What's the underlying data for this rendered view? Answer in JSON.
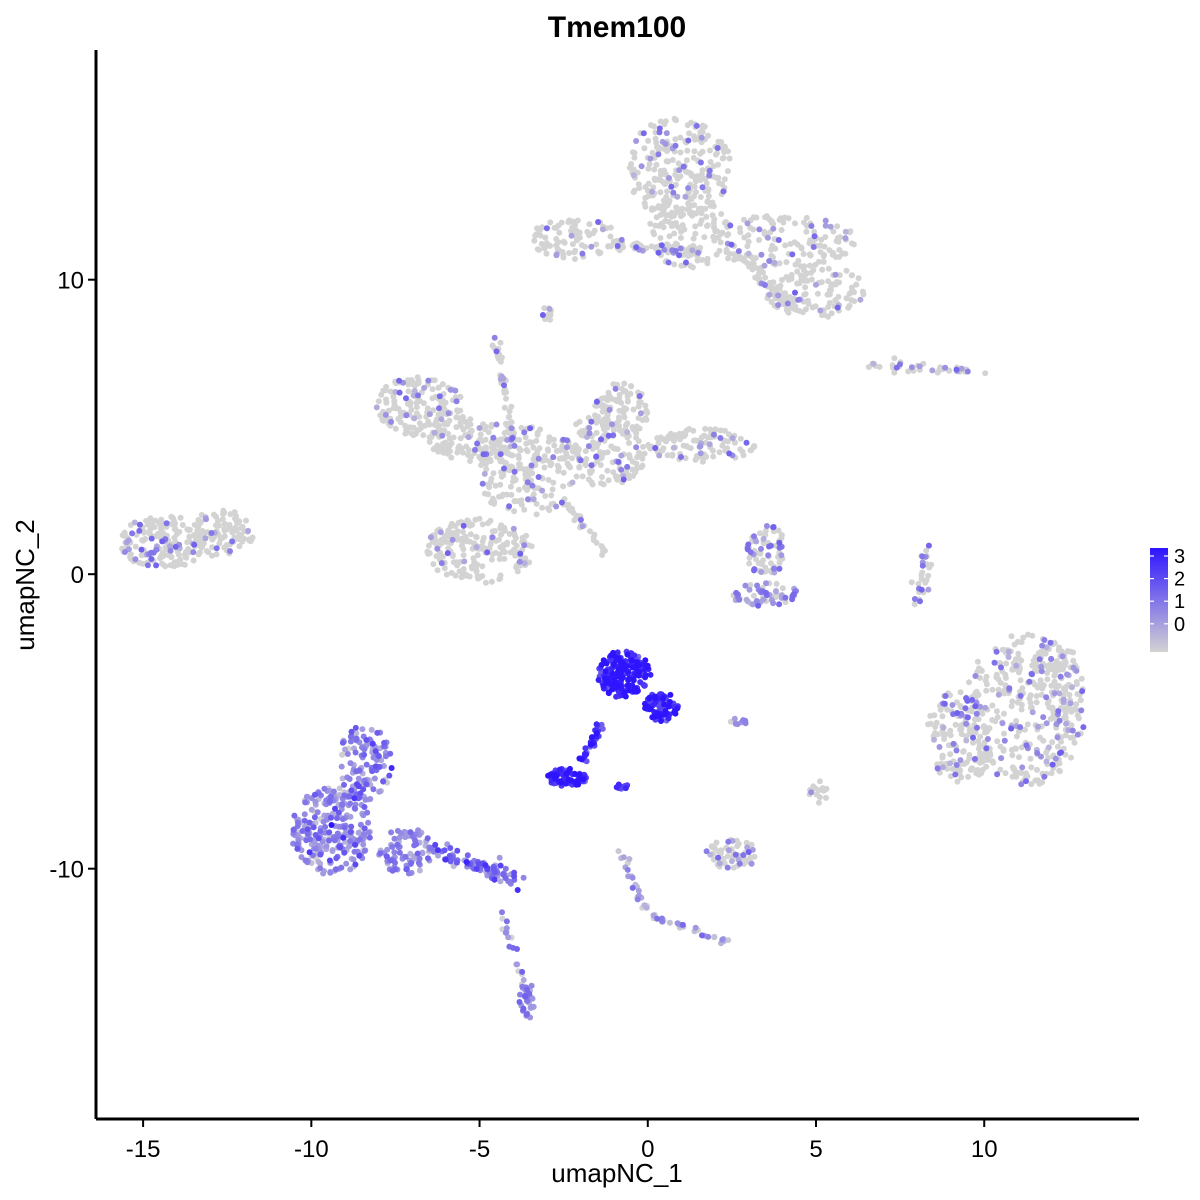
{
  "chart_data": {
    "type": "scatter",
    "title": "Tmem100",
    "xlabel": "umapNC_1",
    "ylabel": "umapNC_2",
    "xlim": [
      -16.4,
      14.6
    ],
    "ylim": [
      -18.5,
      17.8
    ],
    "x_ticks": [
      -15,
      -10,
      -5,
      0,
      5,
      10
    ],
    "y_ticks": [
      10,
      0,
      -10
    ],
    "x_tick_labels": [
      "-15",
      "-10",
      "-5",
      "0",
      "5",
      "10"
    ],
    "y_tick_labels": [
      "10",
      "0",
      "-10"
    ],
    "grid": false,
    "legend": {
      "placement": "right",
      "values": [
        3,
        2,
        1,
        0
      ],
      "labels": [
        "3",
        "2",
        "1",
        "0"
      ],
      "low_color": "#d3d3d3",
      "high_color": "#2e14ff"
    },
    "expression_range": [
      0,
      3.3
    ],
    "point_color_low": "#d3d3d3",
    "point_color_high": "#2e14ff",
    "clusters": [
      {
        "shape": "blob",
        "cx": 0.9,
        "cy": 13.8,
        "rx": 1.6,
        "ry": 1.7,
        "n": 240,
        "expr": 0.05
      },
      {
        "shape": "blob",
        "cx": 1.2,
        "cy": 11.6,
        "rx": 1.2,
        "ry": 1.2,
        "n": 90,
        "expr": 0.05
      },
      {
        "shape": "blob",
        "cx": 4.0,
        "cy": 11.3,
        "rx": 2.2,
        "ry": 0.9,
        "n": 140,
        "expr": 0.05
      },
      {
        "shape": "blob",
        "cx": 5.0,
        "cy": 9.6,
        "rx": 1.5,
        "ry": 0.9,
        "n": 120,
        "expr": 0.05
      },
      {
        "shape": "blob",
        "cx": -2.2,
        "cy": 11.4,
        "rx": 1.3,
        "ry": 0.7,
        "n": 80,
        "expr": 0.05
      },
      {
        "shape": "line",
        "x0": -1.2,
        "y0": 11.2,
        "x1": 1.5,
        "y1": 11.0,
        "n": 60,
        "w": 0.2,
        "expr": 0.05
      },
      {
        "shape": "line",
        "x0": 2.5,
        "y0": 11.0,
        "x1": 4.2,
        "y1": 9.2,
        "n": 50,
        "w": 0.3,
        "expr": 0.05
      },
      {
        "shape": "blob",
        "cx": -3.0,
        "cy": 8.8,
        "rx": 0.15,
        "ry": 0.3,
        "n": 12,
        "expr": 0.1
      },
      {
        "shape": "blob",
        "cx": -6.8,
        "cy": 5.7,
        "rx": 1.3,
        "ry": 1.0,
        "n": 160,
        "expr": 0.05
      },
      {
        "shape": "blob",
        "cx": -5.2,
        "cy": 4.6,
        "rx": 1.3,
        "ry": 0.8,
        "n": 120,
        "expr": 0.05
      },
      {
        "shape": "blob",
        "cx": -3.6,
        "cy": 3.5,
        "rx": 1.5,
        "ry": 1.5,
        "n": 200,
        "expr": 0.05
      },
      {
        "shape": "blob",
        "cx": -1.3,
        "cy": 4.2,
        "rx": 1.3,
        "ry": 1.2,
        "n": 160,
        "expr": 0.05
      },
      {
        "shape": "blob",
        "cx": -0.8,
        "cy": 5.5,
        "rx": 0.8,
        "ry": 1.0,
        "n": 90,
        "expr": 0.05
      },
      {
        "shape": "blob",
        "cx": 1.6,
        "cy": 4.4,
        "rx": 1.6,
        "ry": 0.6,
        "n": 110,
        "expr": 0.06
      },
      {
        "shape": "blob",
        "cx": -5.0,
        "cy": 0.8,
        "rx": 1.6,
        "ry": 1.1,
        "n": 200,
        "expr": 0.05
      },
      {
        "shape": "line",
        "x0": -4.5,
        "y0": 8.0,
        "x1": -4.0,
        "y1": 4.5,
        "n": 40,
        "w": 0.12,
        "expr": 0.05
      },
      {
        "shape": "line",
        "x0": -2.5,
        "y0": 2.5,
        "x1": -1.2,
        "y1": 0.7,
        "n": 30,
        "w": 0.15,
        "expr": 0.05
      },
      {
        "shape": "blob",
        "cx": -14.4,
        "cy": 1.1,
        "rx": 1.3,
        "ry": 0.9,
        "n": 180,
        "expr": 0.05
      },
      {
        "shape": "blob",
        "cx": -12.7,
        "cy": 1.4,
        "rx": 1.0,
        "ry": 0.8,
        "n": 100,
        "expr": 0.05
      },
      {
        "shape": "blob",
        "cx": 3.5,
        "cy": 0.8,
        "rx": 0.6,
        "ry": 0.9,
        "n": 70,
        "expr": 0.15
      },
      {
        "shape": "blob",
        "cx": 3.5,
        "cy": -0.7,
        "rx": 1.0,
        "ry": 0.4,
        "n": 60,
        "expr": 0.25
      },
      {
        "shape": "line",
        "x0": 8.3,
        "y0": 0.9,
        "x1": 8.0,
        "y1": -1.0,
        "n": 30,
        "w": 0.2,
        "expr": 0.1
      },
      {
        "shape": "line",
        "x0": 6.6,
        "y0": 7.1,
        "x1": 10.1,
        "y1": 6.9,
        "n": 40,
        "w": 0.15,
        "expr": 0.12
      },
      {
        "shape": "blob",
        "cx": 11.2,
        "cy": -4.6,
        "rx": 1.8,
        "ry": 2.6,
        "n": 320,
        "expr": 0.08
      },
      {
        "shape": "blob",
        "cx": 9.3,
        "cy": -5.5,
        "rx": 1.0,
        "ry": 1.6,
        "n": 150,
        "expr": 0.08
      },
      {
        "shape": "blob",
        "cx": 12.1,
        "cy": -3.6,
        "rx": 0.8,
        "ry": 1.4,
        "n": 80,
        "expr": 0.08
      },
      {
        "shape": "blob",
        "cx": -0.7,
        "cy": -3.4,
        "rx": 0.8,
        "ry": 0.8,
        "n": 180,
        "expr": 3.0
      },
      {
        "shape": "blob",
        "cx": 0.4,
        "cy": -4.5,
        "rx": 0.5,
        "ry": 0.5,
        "n": 80,
        "expr": 2.8
      },
      {
        "shape": "line",
        "x0": -1.4,
        "y0": -5.1,
        "x1": -2.0,
        "y1": -6.5,
        "n": 30,
        "w": 0.12,
        "expr": 2.6
      },
      {
        "shape": "blob",
        "cx": -2.4,
        "cy": -6.9,
        "rx": 0.6,
        "ry": 0.3,
        "n": 70,
        "expr": 2.9
      },
      {
        "shape": "blob",
        "cx": -0.8,
        "cy": -7.2,
        "rx": 0.2,
        "ry": 0.1,
        "n": 10,
        "expr": 2.7
      },
      {
        "shape": "blob",
        "cx": -9.4,
        "cy": -8.7,
        "rx": 1.2,
        "ry": 1.5,
        "n": 260,
        "expr": 1.2
      },
      {
        "shape": "blob",
        "cx": -8.4,
        "cy": -6.4,
        "rx": 0.8,
        "ry": 1.3,
        "n": 120,
        "expr": 1.3
      },
      {
        "shape": "blob",
        "cx": -7.2,
        "cy": -9.4,
        "rx": 0.8,
        "ry": 0.8,
        "n": 80,
        "expr": 0.4
      },
      {
        "shape": "line",
        "x0": -6.5,
        "y0": -9.3,
        "x1": -3.9,
        "y1": -10.4,
        "n": 90,
        "w": 0.3,
        "expr": 1.5
      },
      {
        "shape": "line",
        "x0": -4.5,
        "y0": -11.0,
        "x1": -3.4,
        "y1": -15.0,
        "n": 25,
        "w": 0.15,
        "expr": 0.3
      },
      {
        "shape": "blob",
        "cx": -3.6,
        "cy": -14.4,
        "rx": 0.25,
        "ry": 0.6,
        "n": 30,
        "expr": 0.5
      },
      {
        "shape": "line",
        "x0": -0.8,
        "y0": -9.4,
        "x1": -0.1,
        "y1": -11.4,
        "n": 25,
        "w": 0.12,
        "expr": 0.6
      },
      {
        "shape": "line",
        "x0": 0.0,
        "y0": -11.6,
        "x1": 2.4,
        "y1": -12.5,
        "n": 30,
        "w": 0.12,
        "expr": 0.7
      },
      {
        "shape": "blob",
        "cx": 2.5,
        "cy": -9.5,
        "rx": 0.8,
        "ry": 0.5,
        "n": 60,
        "expr": 0.1
      },
      {
        "shape": "blob",
        "cx": 5.1,
        "cy": -7.4,
        "rx": 0.3,
        "ry": 0.4,
        "n": 15,
        "expr": 0.05
      },
      {
        "shape": "blob",
        "cx": 2.7,
        "cy": -5.0,
        "rx": 0.3,
        "ry": 0.1,
        "n": 8,
        "expr": 0.3
      }
    ]
  }
}
